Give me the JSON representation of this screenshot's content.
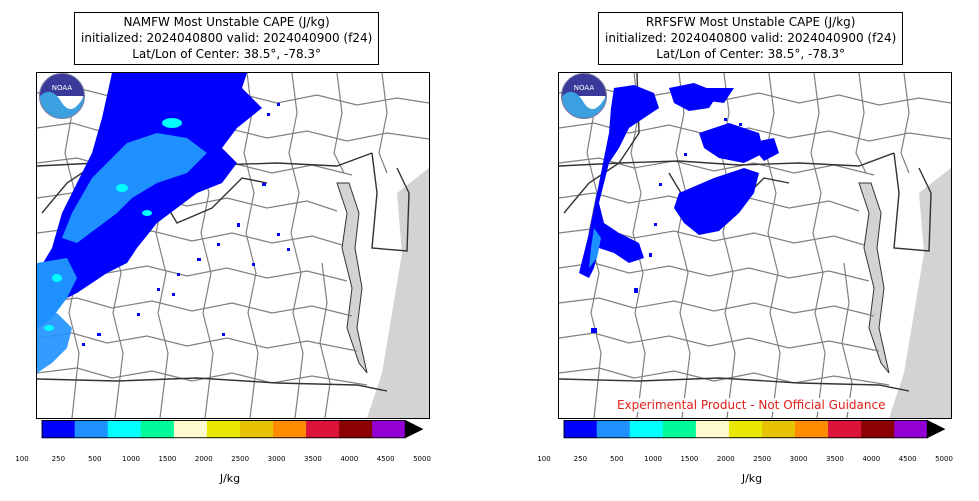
{
  "panels": [
    {
      "title_line1": "NAMFW Most Unstable CAPE (J/kg)",
      "title_line2": "initialized: 2024040800 valid: 2024040900 (f24)",
      "title_line3": "Lat/Lon of Center: 38.5°, -78.3°",
      "logo_text": "NOAA"
    },
    {
      "title_line1": "RRFSFW Most Unstable CAPE (J/kg)",
      "title_line2": "initialized: 2024040800 valid: 2024040900 (f24)",
      "title_line3": "Lat/Lon of Center: 38.5°, -78.3°",
      "logo_text": "NOAA",
      "disclaimer": "Experimental Product - Not Official Guidance"
    }
  ],
  "colorbar": {
    "unit_label": "J/kg",
    "ticks": [
      "100",
      "250",
      "500",
      "1000",
      "1500",
      "2000",
      "2500",
      "3000",
      "3500",
      "4000",
      "4500",
      "5000"
    ],
    "colors": [
      "#0000ff",
      "#1e90ff",
      "#00ffff",
      "#00fa9a",
      "#fffacd",
      "#e8e800",
      "#e6c200",
      "#ff8c00",
      "#dc143c",
      "#8b0000",
      "#9400d3"
    ],
    "extend_color": "#000000"
  },
  "map_colors": {
    "water": "#d3d3d3",
    "county_border": "#808080",
    "state_border": "#333333",
    "cape_low": "#0000ff",
    "cape_mid": "#1e90ff",
    "cape_high": "#00ffff"
  }
}
